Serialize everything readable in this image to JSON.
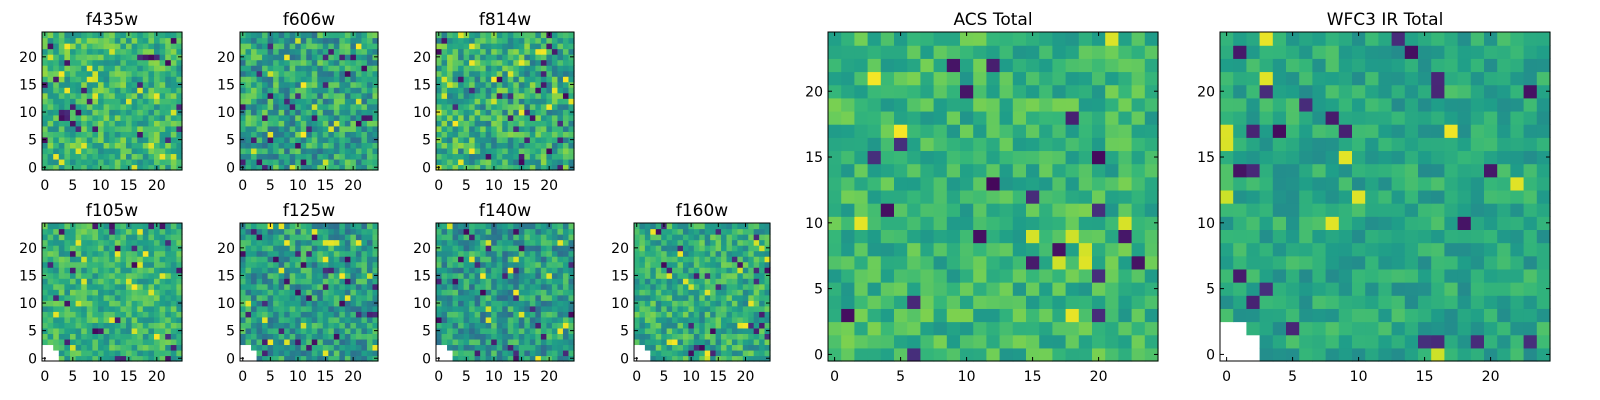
{
  "figure": {
    "background": "#ffffff"
  },
  "colormap": "viridis",
  "colors": [
    "#440154",
    "#482878",
    "#3e4989",
    "#31688e",
    "#26828e",
    "#1f9e89",
    "#35b779",
    "#6ece58",
    "#b5de2b",
    "#fde725"
  ],
  "chart_data": [
    {
      "type": "heatmap",
      "title": "f435w",
      "grid": [
        25,
        25
      ],
      "xlim": [
        0,
        24
      ],
      "ylim": [
        0,
        24
      ],
      "xticks": [
        0,
        5,
        10,
        15,
        20
      ],
      "yticks": [
        0,
        5,
        10,
        15,
        20
      ],
      "mask": "none",
      "mean": 0.66,
      "spread": 0.18,
      "seed": 11
    },
    {
      "type": "heatmap",
      "title": "f606w",
      "grid": [
        25,
        25
      ],
      "xlim": [
        0,
        24
      ],
      "ylim": [
        0,
        24
      ],
      "xticks": [
        0,
        5,
        10,
        15,
        20
      ],
      "yticks": [
        0,
        5,
        10,
        15,
        20
      ],
      "mask": "none",
      "mean": 0.58,
      "spread": 0.22,
      "seed": 23
    },
    {
      "type": "heatmap",
      "title": "f814w",
      "grid": [
        25,
        25
      ],
      "xlim": [
        0,
        24
      ],
      "ylim": [
        0,
        24
      ],
      "xticks": [
        0,
        5,
        10,
        15,
        20
      ],
      "yticks": [
        0,
        5,
        10,
        15,
        20
      ],
      "mask": "none",
      "mean": 0.62,
      "spread": 0.22,
      "seed": 37
    },
    {
      "type": "heatmap",
      "title": "f105w",
      "grid": [
        25,
        25
      ],
      "xlim": [
        0,
        24
      ],
      "ylim": [
        0,
        24
      ],
      "xticks": [
        0,
        5,
        10,
        15,
        20
      ],
      "yticks": [
        0,
        5,
        10,
        15,
        20
      ],
      "mask": "bottom-left",
      "mean": 0.64,
      "spread": 0.16,
      "seed": 41
    },
    {
      "type": "heatmap",
      "title": "f125w",
      "grid": [
        25,
        25
      ],
      "xlim": [
        0,
        24
      ],
      "ylim": [
        0,
        24
      ],
      "xticks": [
        0,
        5,
        10,
        15,
        20
      ],
      "yticks": [
        0,
        5,
        10,
        15,
        20
      ],
      "mask": "bottom-left",
      "mean": 0.56,
      "spread": 0.2,
      "seed": 53
    },
    {
      "type": "heatmap",
      "title": "f140w",
      "grid": [
        25,
        25
      ],
      "xlim": [
        0,
        24
      ],
      "ylim": [
        0,
        24
      ],
      "xticks": [
        0,
        5,
        10,
        15,
        20
      ],
      "yticks": [
        0,
        5,
        10,
        15,
        20
      ],
      "mask": "bottom-left",
      "mean": 0.55,
      "spread": 0.2,
      "seed": 67
    },
    {
      "type": "heatmap",
      "title": "f160w",
      "grid": [
        25,
        25
      ],
      "xlim": [
        0,
        24
      ],
      "ylim": [
        0,
        24
      ],
      "xticks": [
        0,
        5,
        10,
        15,
        20
      ],
      "yticks": [
        0,
        5,
        10,
        15,
        20
      ],
      "mask": "bottom-left",
      "mean": 0.62,
      "spread": 0.18,
      "seed": 79
    },
    {
      "type": "heatmap",
      "title": "ACS Total",
      "grid": [
        25,
        25
      ],
      "xlim": [
        0,
        24
      ],
      "ylim": [
        0,
        24
      ],
      "xticks": [
        0,
        5,
        10,
        15,
        20
      ],
      "yticks": [
        0,
        5,
        10,
        15,
        20
      ],
      "mask": "none",
      "mean": 0.66,
      "spread": 0.14,
      "seed": 97
    },
    {
      "type": "heatmap",
      "title": "WFC3 IR Total",
      "grid": [
        25,
        25
      ],
      "xlim": [
        0,
        24
      ],
      "ylim": [
        0,
        24
      ],
      "xticks": [
        0,
        5,
        10,
        15,
        20
      ],
      "yticks": [
        0,
        5,
        10,
        15,
        20
      ],
      "mask": "bottom-left",
      "mean": 0.6,
      "spread": 0.12,
      "seed": 131
    }
  ]
}
